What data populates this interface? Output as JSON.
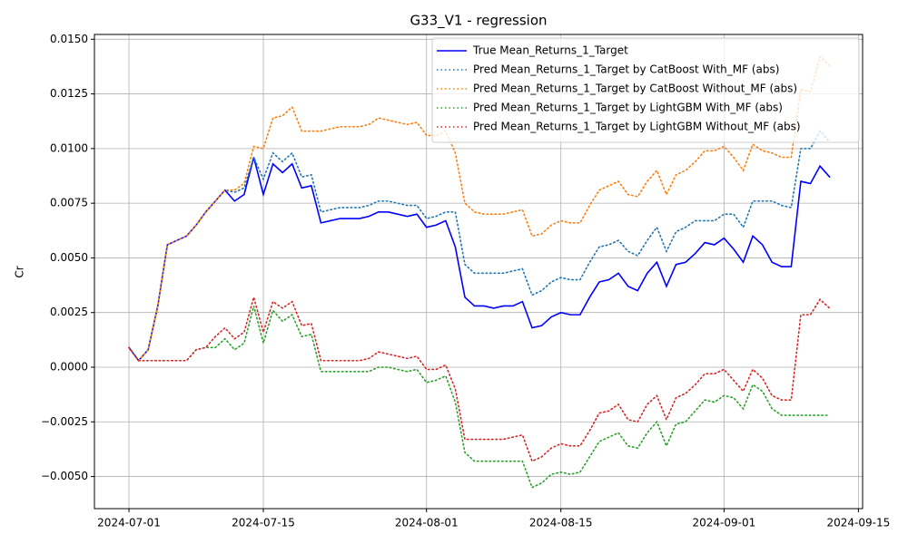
{
  "chart_data": {
    "type": "line",
    "title": "G33_V1 - regression",
    "y_label": "Cr",
    "grid": true,
    "legend": "upper right",
    "x": [
      "2024-07-01",
      "2024-07-02",
      "2024-07-03",
      "2024-07-04",
      "2024-07-05",
      "2024-07-06",
      "2024-07-07",
      "2024-07-08",
      "2024-07-09",
      "2024-07-10",
      "2024-07-11",
      "2024-07-12",
      "2024-07-13",
      "2024-07-14",
      "2024-07-15",
      "2024-07-16",
      "2024-07-17",
      "2024-07-18",
      "2024-07-19",
      "2024-07-20",
      "2024-07-21",
      "2024-07-22",
      "2024-07-23",
      "2024-07-24",
      "2024-07-25",
      "2024-07-26",
      "2024-07-27",
      "2024-07-28",
      "2024-07-29",
      "2024-07-30",
      "2024-07-31",
      "2024-08-01",
      "2024-08-02",
      "2024-08-03",
      "2024-08-04",
      "2024-08-05",
      "2024-08-06",
      "2024-08-07",
      "2024-08-08",
      "2024-08-09",
      "2024-08-10",
      "2024-08-11",
      "2024-08-12",
      "2024-08-13",
      "2024-08-14",
      "2024-08-15",
      "2024-08-16",
      "2024-08-17",
      "2024-08-18",
      "2024-08-19",
      "2024-08-20",
      "2024-08-21",
      "2024-08-22",
      "2024-08-23",
      "2024-08-24",
      "2024-08-25",
      "2024-08-26",
      "2024-08-27",
      "2024-08-28",
      "2024-08-29",
      "2024-08-30",
      "2024-08-31",
      "2024-09-01",
      "2024-09-02",
      "2024-09-03",
      "2024-09-04",
      "2024-09-05",
      "2024-09-06",
      "2024-09-07",
      "2024-09-08",
      "2024-09-09",
      "2024-09-10",
      "2024-09-11",
      "2024-09-12"
    ],
    "series": [
      {
        "name": "True Mean_Returns_1_Target",
        "color": "#0000ff",
        "dash": "solid",
        "values": [
          0.0009,
          0.0003,
          0.0008,
          0.0028,
          0.0056,
          0.0058,
          0.006,
          0.0065,
          0.0071,
          0.0076,
          0.0081,
          0.0076,
          0.0079,
          0.0096,
          0.0079,
          0.0093,
          0.0089,
          0.0093,
          0.0082,
          0.0083,
          0.0066,
          0.0067,
          0.0068,
          0.0068,
          0.0068,
          0.0069,
          0.0071,
          0.0071,
          0.007,
          0.0069,
          0.007,
          0.0064,
          0.0065,
          0.0067,
          0.0055,
          0.0032,
          0.0028,
          0.0028,
          0.0027,
          0.0028,
          0.0028,
          0.003,
          0.0018,
          0.0019,
          0.0023,
          0.0025,
          0.0024,
          0.0024,
          0.0032,
          0.0039,
          0.004,
          0.0043,
          0.0037,
          0.0035,
          0.0043,
          0.0048,
          0.0037,
          0.0047,
          0.0048,
          0.0052,
          0.0057,
          0.0056,
          0.0059,
          0.0054,
          0.0048,
          0.006,
          0.0056,
          0.0048,
          0.0046,
          0.0046,
          0.0085,
          0.0084,
          0.0092,
          0.0087
        ]
      },
      {
        "name": "Pred Mean_Returns_1_Target by CatBoost With_MF (abs)",
        "color": "#1f77b4",
        "dash": "dotted",
        "values": [
          0.0009,
          0.0003,
          0.0008,
          0.0028,
          0.0056,
          0.0058,
          0.006,
          0.0065,
          0.0071,
          0.0076,
          0.0081,
          0.008,
          0.0082,
          0.0096,
          0.0086,
          0.0098,
          0.0094,
          0.0098,
          0.0087,
          0.0088,
          0.0071,
          0.0072,
          0.0073,
          0.0073,
          0.0073,
          0.0074,
          0.0076,
          0.0076,
          0.0075,
          0.0074,
          0.0074,
          0.0068,
          0.0069,
          0.0071,
          0.0071,
          0.0047,
          0.0043,
          0.0043,
          0.0043,
          0.0043,
          0.0044,
          0.0045,
          0.0033,
          0.0035,
          0.0039,
          0.0041,
          0.004,
          0.004,
          0.0048,
          0.0055,
          0.0056,
          0.0058,
          0.0053,
          0.0051,
          0.0058,
          0.0064,
          0.0053,
          0.0062,
          0.0064,
          0.0067,
          0.0067,
          0.0067,
          0.007,
          0.007,
          0.0064,
          0.0076,
          0.0076,
          0.0076,
          0.0074,
          0.0073,
          0.01,
          0.01,
          0.0108,
          0.0103
        ]
      },
      {
        "name": "Pred Mean_Returns_1_Target by CatBoost Without_MF (abs)",
        "color": "#ff7f0e",
        "dash": "dotted",
        "values": [
          0.0009,
          0.0003,
          0.0008,
          0.0028,
          0.0056,
          0.0058,
          0.006,
          0.0065,
          0.0071,
          0.0076,
          0.0081,
          0.0081,
          0.0084,
          0.0101,
          0.01,
          0.0114,
          0.0115,
          0.0119,
          0.0108,
          0.0108,
          0.0108,
          0.0109,
          0.011,
          0.011,
          0.011,
          0.0111,
          0.0114,
          0.0113,
          0.0112,
          0.0111,
          0.0112,
          0.0106,
          0.0106,
          0.0108,
          0.0098,
          0.0075,
          0.0071,
          0.007,
          0.007,
          0.007,
          0.0071,
          0.0072,
          0.006,
          0.0061,
          0.0065,
          0.0067,
          0.0066,
          0.0066,
          0.0074,
          0.0081,
          0.0083,
          0.0085,
          0.0079,
          0.0078,
          0.0085,
          0.009,
          0.0079,
          0.0088,
          0.009,
          0.0094,
          0.0099,
          0.0099,
          0.0101,
          0.0096,
          0.009,
          0.0102,
          0.0099,
          0.0098,
          0.0096,
          0.0096,
          0.0127,
          0.0126,
          0.0142,
          0.0138
        ]
      },
      {
        "name": "Pred Mean_Returns_1_Target by LightGBM With_MF (abs)",
        "color": "#2ca02c",
        "dash": "dotted",
        "values": [
          0.0009,
          0.0003,
          0.0003,
          0.0003,
          0.0003,
          0.0003,
          0.0003,
          0.0008,
          0.0009,
          0.0009,
          0.0013,
          0.0008,
          0.0011,
          0.0028,
          0.0011,
          0.0026,
          0.0021,
          0.0024,
          0.0014,
          0.0015,
          -0.0002,
          -0.0002,
          -0.0002,
          -0.0002,
          -0.0002,
          -0.0002,
          0.0,
          0.0,
          -0.0001,
          -0.0002,
          -0.0001,
          -0.0007,
          -0.0006,
          -0.0004,
          -0.0016,
          -0.0039,
          -0.0043,
          -0.0043,
          -0.0043,
          -0.0043,
          -0.0043,
          -0.0043,
          -0.0055,
          -0.0053,
          -0.0049,
          -0.0048,
          -0.0049,
          -0.0048,
          -0.0041,
          -0.0034,
          -0.0032,
          -0.003,
          -0.0036,
          -0.0037,
          -0.003,
          -0.0025,
          -0.0036,
          -0.0026,
          -0.0025,
          -0.002,
          -0.0015,
          -0.0016,
          -0.0013,
          -0.0014,
          -0.0019,
          -0.0008,
          -0.0011,
          -0.0019,
          -0.0022,
          -0.0022,
          -0.0022,
          -0.0022,
          -0.0022,
          -0.0022
        ]
      },
      {
        "name": "Pred Mean_Returns_1_Target by LightGBM Without_MF (abs)",
        "color": "#d62728",
        "dash": "dotted",
        "values": [
          0.0009,
          0.0003,
          0.0003,
          0.0003,
          0.0003,
          0.0003,
          0.0003,
          0.0008,
          0.0009,
          0.0014,
          0.0018,
          0.0013,
          0.0016,
          0.0032,
          0.0016,
          0.003,
          0.0027,
          0.003,
          0.0019,
          0.002,
          0.0003,
          0.0003,
          0.0003,
          0.0003,
          0.0003,
          0.0004,
          0.0007,
          0.0006,
          0.0005,
          0.0004,
          0.0005,
          -0.0001,
          -0.0001,
          0.0001,
          -0.001,
          -0.0033,
          -0.0033,
          -0.0033,
          -0.0033,
          -0.0033,
          -0.0032,
          -0.0031,
          -0.0043,
          -0.0041,
          -0.0037,
          -0.0035,
          -0.0036,
          -0.0036,
          -0.0029,
          -0.0021,
          -0.002,
          -0.0017,
          -0.0024,
          -0.0025,
          -0.0017,
          -0.0013,
          -0.0024,
          -0.0014,
          -0.0012,
          -0.0008,
          -0.0003,
          -0.0003,
          -0.0001,
          -0.0006,
          -0.0011,
          -0.0001,
          -0.0005,
          -0.0013,
          -0.0015,
          -0.0015,
          0.0024,
          0.0024,
          0.0031,
          0.0027
        ]
      }
    ],
    "xlim": [
      "2024-06-27T09:36Z",
      "2024-09-15T10:30Z"
    ],
    "xticks": [
      "2024-07-01",
      "2024-07-15",
      "2024-08-01",
      "2024-08-15",
      "2024-09-01",
      "2024-09-15"
    ],
    "ylim": [
      -0.00647,
      0.01522
    ],
    "yticks": [
      {
        "value": -0.005,
        "label": "−0.0050"
      },
      {
        "value": -0.0025,
        "label": "−0.0025"
      },
      {
        "value": 0,
        "label": "0.0000"
      },
      {
        "value": 0.0025,
        "label": "0.0025"
      },
      {
        "value": 0.005,
        "label": "0.0050"
      },
      {
        "value": 0.0075,
        "label": "0.0075"
      },
      {
        "value": 0.01,
        "label": "0.0100"
      },
      {
        "value": 0.0125,
        "label": "0.0125"
      },
      {
        "value": 0.015,
        "label": "0.0150"
      }
    ]
  }
}
